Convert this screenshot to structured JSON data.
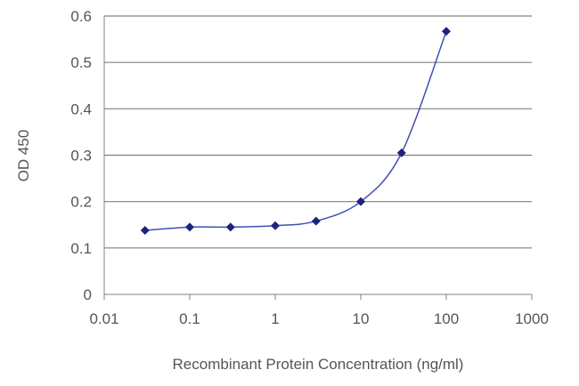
{
  "chart_data": {
    "type": "line",
    "title": "",
    "xlabel": "Recombinant Protein Concentration (ng/ml)",
    "ylabel": "OD 450",
    "x_scale": "log",
    "xlim": [
      0.01,
      1000
    ],
    "ylim": [
      0,
      0.6
    ],
    "x_ticks": [
      "0.01",
      "0.1",
      "1",
      "10",
      "100",
      "1000"
    ],
    "y_ticks": [
      "0",
      "0.1",
      "0.2",
      "0.3",
      "0.4",
      "0.5",
      "0.6"
    ],
    "grid": "horizontal",
    "legend": "none",
    "series": [
      {
        "x": [
          0.03,
          0.1,
          0.3,
          1,
          3,
          10,
          30,
          100
        ],
        "y": [
          0.138,
          0.145,
          0.145,
          0.148,
          0.158,
          0.2,
          0.305,
          0.567
        ],
        "color": "#1a237e"
      }
    ]
  }
}
